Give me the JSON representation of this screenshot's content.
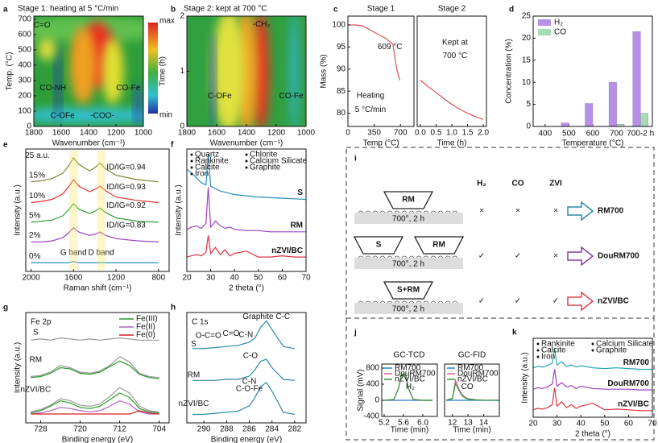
{
  "chart_data": [
    {
      "type": "heatmap",
      "panel_label": "a",
      "title": "Stage 1: heating at 5 °C/min",
      "xlabel": "Wavenumber (cm⁻¹)",
      "ylabel": "Temp. (°C)",
      "xlim": [
        1800,
        1000
      ],
      "xticks": [
        1800,
        1600,
        1400,
        1200,
        1000
      ],
      "ylim": [
        0,
        720
      ],
      "yticks": [
        0,
        100,
        200,
        300,
        400,
        500,
        600,
        700
      ],
      "colorbar_labels": [
        "max",
        "min"
      ],
      "annotations": [
        "C=O",
        "CO-NH",
        "C-OFe",
        "-COO-",
        "CO-Fe"
      ]
    },
    {
      "type": "heatmap",
      "panel_label": "b",
      "title": "Stage 2: kept at 700 °C",
      "xlabel": "Wavenumber (cm⁻¹)",
      "ylabel": "Time (h)",
      "xlim": [
        1800,
        1000
      ],
      "xticks": [
        1800,
        1600,
        1400,
        1200,
        1000
      ],
      "ylim": [
        0,
        2
      ],
      "yticks": [
        0,
        1,
        2
      ],
      "annotations": [
        "-CH₂",
        "C-OFe",
        "CO-Fe"
      ]
    },
    {
      "type": "line",
      "panel_label": "c",
      "title": "Stage 1",
      "xlabel": "Temp (°C)",
      "ylabel": "Mass (%)",
      "xlim": [
        0,
        880
      ],
      "xticks": [
        0,
        350,
        700
      ],
      "ylim": [
        77,
        102
      ],
      "yticks": [
        80,
        85,
        90,
        95,
        100
      ],
      "x": [
        0,
        100,
        200,
        300,
        400,
        500,
        600,
        609,
        650,
        690
      ],
      "series": [
        {
          "color": "#e05050",
          "values": [
            100,
            100,
            99.8,
            98.8,
            97.9,
            97,
            95.6,
            94.5,
            90,
            87.5
          ]
        }
      ],
      "annotations": [
        "609 °C",
        "Heating",
        "5 °C/min"
      ]
    },
    {
      "type": "line",
      "title": "Stage 2",
      "xlabel": "Time (h)",
      "xlim": [
        -0.1,
        2.1
      ],
      "xticks": [
        {
          "value": 0,
          "label": "0.0"
        },
        0.5,
        {
          "value": 1,
          "label": "1.0"
        },
        1.5,
        {
          "value": 2,
          "label": "2.0"
        }
      ],
      "ylim": [
        77,
        102
      ],
      "x": [
        0,
        0.25,
        0.5,
        0.75,
        1,
        1.25,
        1.5,
        1.75,
        2
      ],
      "series": [
        {
          "color": "#e05050",
          "values": [
            87.5,
            86,
            84.7,
            83.3,
            82,
            80.9,
            80,
            79.2,
            78.6
          ]
        }
      ],
      "annotations": [
        "Kept at",
        "700 °C"
      ]
    },
    {
      "type": "bar",
      "panel_label": "d",
      "xlabel": "Temperature (°C)",
      "ylabel": "Concentration (%)",
      "categories": [
        "400",
        "500",
        "600",
        "700",
        "700-2 h"
      ],
      "ylim": [
        0,
        25
      ],
      "yticks": [
        0,
        5,
        10,
        15,
        20,
        25
      ],
      "legend": "upper left",
      "series": [
        {
          "name": "H₂",
          "color": "#b690e6",
          "values": [
            0,
            0.8,
            5.2,
            10,
            21.5
          ]
        },
        {
          "name": "CO",
          "color": "#a6dcb4",
          "values": [
            0,
            0,
            0,
            0.5,
            3
          ]
        }
      ]
    },
    {
      "type": "line",
      "panel_label": "e",
      "xlabel": "Raman shift (cm⁻¹)",
      "ylabel": "Intensity (a.u.)",
      "xlim": [
        2050,
        700
      ],
      "xticks": [
        2000,
        1600,
        1200,
        800
      ],
      "ylim": [
        0,
        112
      ],
      "x": [
        2000,
        1900,
        1800,
        1700,
        1650,
        1600,
        1550,
        1450,
        1400,
        1350,
        1300,
        1200,
        1000,
        800
      ],
      "series": [
        {
          "name": "15%",
          "color": "#808030",
          "values": [
            82,
            83,
            85,
            90,
            96,
            104,
            98,
            92,
            95,
            99,
            94,
            88,
            84,
            82
          ]
        },
        {
          "name": "10%",
          "color": "#e03030",
          "values": [
            63,
            64,
            66,
            71,
            77,
            84,
            78,
            73,
            75,
            78,
            74,
            68,
            65,
            63
          ]
        },
        {
          "name": "5%",
          "color": "#30a030",
          "values": [
            45,
            46,
            47,
            51,
            56,
            62,
            57,
            53,
            55,
            58,
            54,
            49,
            46,
            45
          ]
        },
        {
          "name": "2%",
          "color": "#a040c0",
          "values": [
            27,
            27,
            28,
            31,
            35,
            40,
            36,
            33,
            34,
            36,
            33,
            30,
            28,
            27
          ]
        },
        {
          "name": "0%",
          "color": "#2090c0",
          "values": [
            8,
            8,
            8,
            8,
            8,
            9,
            8,
            8,
            8,
            8,
            8,
            8,
            8,
            8
          ]
        }
      ],
      "annotations": [
        "25 a.u.",
        "ID/IG=0.94",
        "ID/IG=0.93",
        "ID/IG=0.92",
        "ID/IG=0.83",
        "G band",
        "D band"
      ]
    },
    {
      "type": "line",
      "panel_label": "f",
      "xlabel": "2 theta (°)",
      "ylabel": "Intensity (a.u.)",
      "xlim": [
        20,
        70
      ],
      "xticks": [
        20,
        30,
        40,
        50,
        60,
        70
      ],
      "ylim": [
        10,
        112
      ],
      "x": [
        20,
        22,
        24,
        26,
        28,
        29,
        30,
        32,
        34,
        36,
        38,
        40,
        45,
        50,
        55,
        60,
        65,
        70
      ],
      "phases": [
        "Quartz",
        "Chlorite",
        "Rankinite",
        "Calcium Silicate",
        "Calcite",
        "Graphite",
        "Iron"
      ],
      "series": [
        {
          "name": "S",
          "color": "#2a8fb8",
          "values": [
            95,
            92,
            88,
            84,
            82,
            108,
            81,
            79,
            77,
            76,
            75,
            74,
            73,
            72,
            71.5,
            71,
            70.5,
            70
          ]
        },
        {
          "name": "RM",
          "color": "#a040c0",
          "values": [
            45,
            47,
            48,
            46,
            50,
            80,
            47,
            52,
            48,
            46,
            47,
            45,
            44,
            44,
            43,
            43,
            43,
            43
          ]
        },
        {
          "name": "nZVI/BC",
          "color": "#e03040",
          "values": [
            22,
            23,
            24,
            23,
            26,
            40,
            25,
            30,
            24,
            28,
            23,
            25,
            27,
            22,
            22,
            23,
            22,
            22
          ]
        }
      ]
    },
    {
      "type": "line",
      "panel_label": "g",
      "title": "Fe 2p",
      "xlabel": "Binding energy (eV)",
      "ylabel": "Intensity (a.u.)",
      "xlim": [
        731,
        702
      ],
      "xticks": [
        728,
        720,
        712,
        704
      ],
      "ylim": [
        0,
        100
      ],
      "legend": "upper right",
      "x": [
        730,
        728,
        726,
        724,
        722,
        720,
        718,
        716,
        714,
        712,
        710,
        708,
        706,
        704
      ],
      "series": [
        {
          "name": "Fe(III)",
          "color": "#2a9a2a",
          "values": [
            9,
            11,
            15,
            20,
            18,
            14,
            13,
            15,
            21,
            27,
            23,
            13,
            10,
            9
          ]
        },
        {
          "name": "Fe(II)",
          "color": "#b060c0",
          "values": [
            8,
            9,
            11,
            14,
            13,
            11,
            10,
            11,
            15,
            20,
            17,
            10,
            8,
            8
          ]
        },
        {
          "name": "Fe(0)",
          "color": "#d02020",
          "values": [
            8,
            8,
            8,
            8,
            8,
            8,
            8,
            8,
            8,
            8,
            8,
            11,
            9,
            8
          ]
        },
        {
          "color": "#999999",
          "values": [
            75,
            76,
            75,
            77,
            76,
            75,
            76,
            75,
            76,
            77,
            76,
            75,
            75,
            75
          ]
        },
        {
          "color": "#999999",
          "values": [
            42,
            43,
            46,
            52,
            50,
            46,
            45,
            47,
            52,
            60,
            55,
            45,
            42,
            41
          ]
        },
        {
          "color": "#2a9a2a",
          "values": [
            41,
            42,
            45,
            50,
            49,
            45,
            44,
            46,
            51,
            56,
            52,
            44,
            41,
            40
          ]
        },
        {
          "color": "#999999",
          "values": [
            10,
            12,
            16,
            22,
            20,
            16,
            15,
            17,
            24,
            32,
            27,
            15,
            11,
            10
          ]
        }
      ],
      "annotations": [
        "S",
        "RM",
        "nZVI/BC"
      ]
    },
    {
      "type": "line",
      "panel_label": "h",
      "title": "C 1s",
      "xlabel": "Binding energy (eV)",
      "xlim": [
        291.5,
        281
      ],
      "xticks": [
        290,
        288,
        286,
        284,
        282
      ],
      "ylim": [
        0,
        104
      ],
      "x": [
        291,
        290,
        289,
        288,
        287,
        286,
        285.5,
        285,
        284.5,
        284,
        283,
        282
      ],
      "series": [
        {
          "color": "#2a8aa8",
          "values": [
            70,
            70,
            71,
            72,
            73,
            76,
            80,
            90,
            96,
            88,
            72,
            70
          ]
        },
        {
          "color": "#2a8aa8",
          "values": [
            40,
            40,
            40,
            41,
            41,
            44,
            50,
            58,
            60,
            52,
            41,
            40
          ]
        },
        {
          "color": "#2a8aa8",
          "values": [
            8,
            8,
            9,
            10,
            11,
            16,
            24,
            34,
            38,
            30,
            10,
            8
          ]
        }
      ],
      "annotations": [
        "Graphite C-C",
        "O-C=O",
        "C=O",
        "C-N",
        "S",
        "C-O",
        "RM",
        "C-N",
        "C-O-Fe",
        "nZVI/BC"
      ]
    },
    {
      "type": "line",
      "panel_label": "j",
      "title": "GC-TCD",
      "xlabel": "Time (min)",
      "ylabel": "Signal (mV)",
      "xlim": [
        5.15,
        6.3
      ],
      "xticks": [
        5.2,
        5.6,
        {
          "value": 6,
          "label": "6.0"
        }
      ],
      "ylim": [
        -400,
        900
      ],
      "yticks": [
        -400,
        0,
        400,
        800
      ],
      "legend": "upper left",
      "x": [
        5.2,
        5.4,
        5.5,
        5.55,
        5.6,
        5.65,
        5.7,
        5.8,
        6.0,
        6.2
      ],
      "series": [
        {
          "name": "RM700",
          "color": "#2a7ad0",
          "values": [
            0,
            0,
            0,
            0,
            0,
            0,
            0,
            0,
            0,
            0
          ]
        },
        {
          "name": "DouRM700",
          "color": "#e0608a",
          "values": [
            0,
            20,
            300,
            600,
            650,
            600,
            300,
            20,
            0,
            0
          ]
        },
        {
          "name": "nZVI/BC",
          "color": "#2a9a3a",
          "values": [
            0,
            25,
            310,
            620,
            660,
            610,
            310,
            25,
            0,
            0
          ]
        }
      ],
      "annotations": [
        "H₂"
      ]
    },
    {
      "type": "line",
      "title": "GC-FID",
      "xlabel": "Time (min)",
      "xlim": [
        11.5,
        15
      ],
      "xticks": [
        12,
        13,
        14
      ],
      "ylim": [
        -400,
        900
      ],
      "legend": "upper left",
      "x": [
        11.6,
        12,
        12.2,
        12.4,
        12.6,
        12.8,
        13,
        13.5,
        14,
        15
      ],
      "series": [
        {
          "name": "RM700",
          "color": "#2a7ad0",
          "values": [
            0,
            0,
            0,
            0,
            0,
            0,
            0,
            0,
            0,
            0
          ]
        },
        {
          "name": "DouRM700",
          "color": "#e0608a",
          "values": [
            0,
            50,
            500,
            300,
            150,
            80,
            40,
            15,
            5,
            0
          ]
        },
        {
          "name": "nZVI/BC",
          "color": "#2a9a3a",
          "values": [
            0,
            40,
            420,
            260,
            120,
            60,
            30,
            10,
            3,
            0
          ]
        }
      ],
      "annotations": [
        "CO"
      ]
    },
    {
      "type": "line",
      "panel_label": "k",
      "xlabel": "2 theta (°)",
      "ylabel": "Intensity (a.u.)",
      "xlim": [
        20,
        70
      ],
      "xticks": [
        20,
        30,
        40,
        50,
        60,
        70
      ],
      "ylim": [
        5,
        112
      ],
      "x": [
        20,
        22,
        24,
        26,
        28,
        29,
        30,
        32,
        34,
        36,
        38,
        40,
        45,
        50,
        55,
        60,
        65,
        70
      ],
      "phases": [
        "Rankinite",
        "Calcium Silicate",
        "Calcite",
        "Graphite",
        "Iron"
      ],
      "series": [
        {
          "name": "RM700",
          "color": "#2aa8b8",
          "values": [
            72,
            74,
            73,
            75,
            78,
            98,
            76,
            80,
            74,
            76,
            73,
            75,
            72,
            71,
            72,
            71,
            70,
            70
          ]
        },
        {
          "name": "DouRM700",
          "color": "#a040c0",
          "values": [
            43,
            45,
            44,
            46,
            50,
            70,
            47,
            52,
            46,
            48,
            44,
            47,
            44,
            43,
            43,
            43,
            42,
            42
          ]
        },
        {
          "name": "nZVI/BC",
          "color": "#e03040",
          "values": [
            15,
            17,
            16,
            18,
            22,
            45,
            20,
            26,
            18,
            22,
            17,
            20,
            24,
            15,
            16,
            15,
            14,
            14
          ]
        }
      ]
    }
  ],
  "diagram": {
    "label": "i",
    "headers": [
      "H₂",
      "CO",
      "ZVI"
    ],
    "rows": [
      {
        "boats": [
          "RM"
        ],
        "temp": "700°, 2 h",
        "marks": [
          "×",
          "×",
          "×"
        ],
        "product": "RM700",
        "color": "#2a8aa8"
      },
      {
        "boats": [
          "S",
          "RM"
        ],
        "temp": "700°, 2 h",
        "marks": [
          "✓",
          "✓",
          "×"
        ],
        "product": "DouRM700",
        "color": "#8a3aa8"
      },
      {
        "boats": [
          "S+RM"
        ],
        "temp": "700°, 2 h",
        "marks": [
          "✓",
          "✓",
          "✓"
        ],
        "product": "nZVI/BC",
        "color": "#e04050"
      }
    ]
  }
}
